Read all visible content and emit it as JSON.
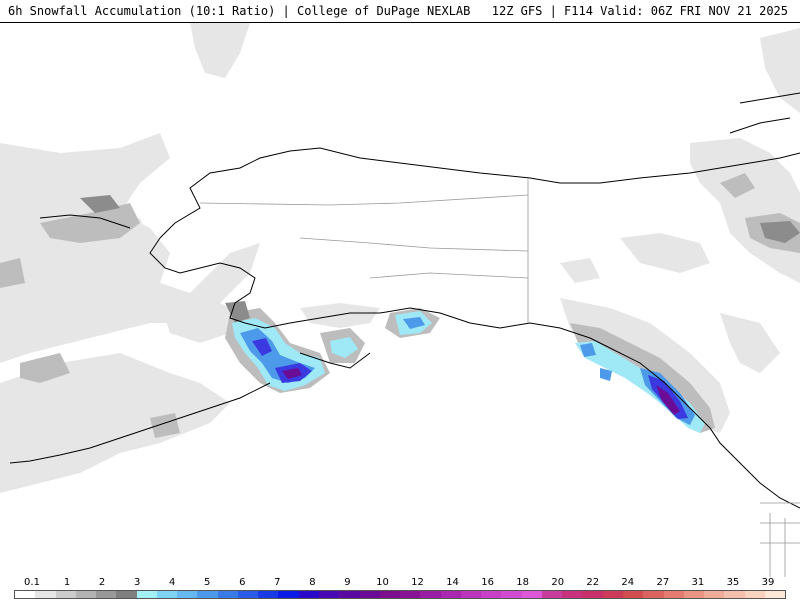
{
  "header": {
    "title_left": "6h Snowfall Accumulation (10:1 Ratio) | College of DuPage NEXLAB",
    "title_right": "12Z GFS | F114 Valid: 06Z FRI NOV 21 2025"
  },
  "legend": {
    "labels": [
      "0.1",
      "1",
      "2",
      "3",
      "4",
      "5",
      "6",
      "7",
      "8",
      "9",
      "10",
      "12",
      "14",
      "16",
      "18",
      "20",
      "22",
      "24",
      "27",
      "31",
      "35",
      "39"
    ],
    "colors": [
      "#ffffff",
      "#e6e6e6",
      "#cccccc",
      "#b3b3b3",
      "#999999",
      "#7f7f7f",
      "#a3f0f5",
      "#7fd4f5",
      "#66b8f0",
      "#4d99ea",
      "#3a7ae6",
      "#2a5ce6",
      "#1a3ce6",
      "#0a1ce6",
      "#2a0ac8",
      "#4a08b4",
      "#5a0aa0",
      "#6a0c96",
      "#7a0e8c",
      "#8a1496",
      "#9a1ea4",
      "#aa28b0",
      "#ba34bc",
      "#c840c8",
      "#d24cd2",
      "#dc58d8",
      "#c83c9c",
      "#c8327e",
      "#c8306a",
      "#cc3c5a",
      "#d24c50",
      "#dc6460",
      "#e47c72",
      "#ea9484",
      "#f0ac98",
      "#f4c0ac",
      "#f8d4c0",
      "#fce6d6"
    ]
  },
  "map": {
    "land_color": "#ffffff",
    "border_color": "#000000",
    "snow_light": "#e6e6e6",
    "snow_mid": "#bdbdbd",
    "snow_dark": "#8c8c8c",
    "snow_cyan": "#9fe8f6",
    "snow_blue": "#4d99ea",
    "snow_deep": "#3a3ae0",
    "snow_purple": "#6a0c96"
  }
}
